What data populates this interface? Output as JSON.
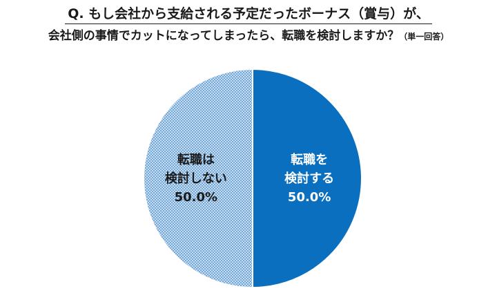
{
  "title": {
    "line1": "Q. もし会社から支給される予定だったボーナス（賞与）が、",
    "line2": "会社側の事情でカットになってしまったら、転職を検討しますか？",
    "note": "（単一回答）"
  },
  "colors": {
    "yes": "#0b6fc0",
    "no_fill": "#c7ddf0",
    "no_dot": "#3b83c4",
    "text_dark": "#1a1a1a",
    "text_light": "#ffffff"
  },
  "chart_data": {
    "type": "pie",
    "title": "Q. もし会社から支給される予定だったボーナス（賞与）が、会社側の事情でカットになってしまったら、転職を検討しますか？（単一回答）",
    "start_angle_deg": 0,
    "direction": "clockwise",
    "slices": [
      {
        "key": "yes",
        "label_lines": [
          "転職を",
          "検討する"
        ],
        "value": 50.0,
        "value_label": "50.0%"
      },
      {
        "key": "no",
        "label_lines": [
          "転職は",
          "検討しない"
        ],
        "value": 50.0,
        "value_label": "50.0%"
      }
    ]
  }
}
